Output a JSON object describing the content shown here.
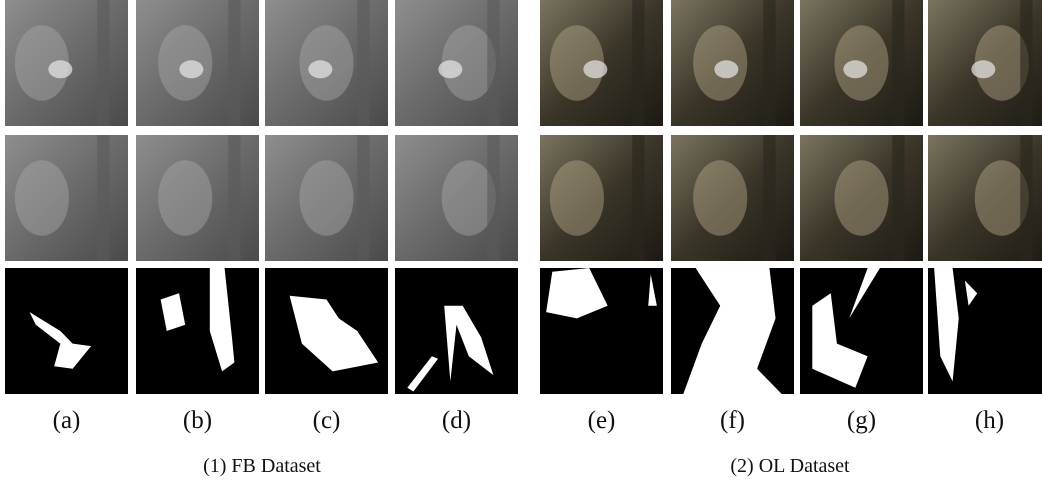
{
  "figure": {
    "groups": [
      {
        "caption": "(1) FB Dataset",
        "panels": [
          "(a)",
          "(b)",
          "(c)",
          "(d)"
        ]
      },
      {
        "caption": "(2) OL Dataset",
        "panels": [
          "(e)",
          "(f)",
          "(g)",
          "(h)"
        ]
      }
    ]
  }
}
